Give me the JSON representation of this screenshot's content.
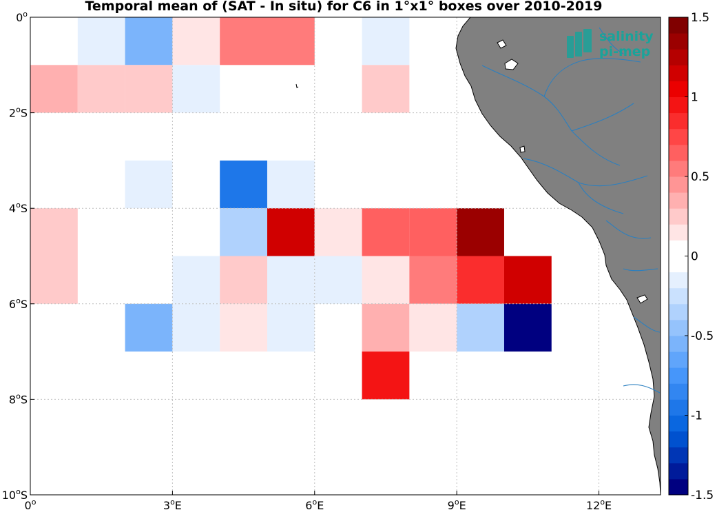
{
  "chart_data": {
    "type": "heatmap",
    "title": "Temporal mean of (SAT - In situ) for C6 in 1°x1° boxes over 2010-2019",
    "xlabel": "",
    "ylabel": "",
    "xlim": [
      0,
      13.3
    ],
    "ylim": [
      -10,
      0
    ],
    "grid": true,
    "x_ticks": [
      {
        "value": 0,
        "label": "0°"
      },
      {
        "value": 3,
        "label": "3°E"
      },
      {
        "value": 6,
        "label": "6°E"
      },
      {
        "value": 9,
        "label": "9°E"
      },
      {
        "value": 12,
        "label": "12°E"
      }
    ],
    "y_ticks": [
      {
        "value": 0,
        "label": "0°"
      },
      {
        "value": -2,
        "label": "2°S"
      },
      {
        "value": -4,
        "label": "4°S"
      },
      {
        "value": -6,
        "label": "6°S"
      },
      {
        "value": -8,
        "label": "8°S"
      },
      {
        "value": -10,
        "label": "10°S"
      }
    ],
    "colorbar": {
      "min": -1.5,
      "max": 1.5,
      "levels": 30,
      "ticks": [
        {
          "value": 1.5,
          "label": "1.5"
        },
        {
          "value": 1,
          "label": "1"
        },
        {
          "value": 0.5,
          "label": "0.5"
        },
        {
          "value": 0,
          "label": "0"
        },
        {
          "value": -0.5,
          "label": "-0.5"
        },
        {
          "value": -1,
          "label": "-1"
        },
        {
          "value": -1.5,
          "label": "-1.5"
        }
      ]
    },
    "cell_size_deg": 1,
    "cells": [
      {
        "lon": 0,
        "lat": 0,
        "value": 0.0
      },
      {
        "lon": 1,
        "lat": 0,
        "value": -0.1
      },
      {
        "lon": 2,
        "lat": 0,
        "value": -0.55
      },
      {
        "lon": 3,
        "lat": 0,
        "value": 0.15
      },
      {
        "lon": 4,
        "lat": 0,
        "value": 0.55
      },
      {
        "lon": 5,
        "lat": 0,
        "value": 0.55
      },
      {
        "lon": 7,
        "lat": 0,
        "value": -0.1
      },
      {
        "lon": 0,
        "lat": -1,
        "value": 0.35
      },
      {
        "lon": 1,
        "lat": -1,
        "value": 0.25
      },
      {
        "lon": 2,
        "lat": -1,
        "value": 0.25
      },
      {
        "lon": 3,
        "lat": -1,
        "value": -0.2
      },
      {
        "lon": 7,
        "lat": -1,
        "value": 0.25
      },
      {
        "lon": 2,
        "lat": -3,
        "value": -0.2
      },
      {
        "lon": 4,
        "lat": -3,
        "value": -0.95
      },
      {
        "lon": 5,
        "lat": -3,
        "value": -0.1
      },
      {
        "lon": 0,
        "lat": -4,
        "value": 0.25
      },
      {
        "lon": 4,
        "lat": -4,
        "value": -0.35
      },
      {
        "lon": 5,
        "lat": -4,
        "value": 1.15
      },
      {
        "lon": 6,
        "lat": -4,
        "value": 0.15
      },
      {
        "lon": 7,
        "lat": -4,
        "value": 0.65
      },
      {
        "lon": 8,
        "lat": -4,
        "value": 0.65
      },
      {
        "lon": 9,
        "lat": -4,
        "value": 1.35
      },
      {
        "lon": 0,
        "lat": -5,
        "value": 0.25
      },
      {
        "lon": 3,
        "lat": -5,
        "value": -0.2
      },
      {
        "lon": 4,
        "lat": -5,
        "value": 0.25
      },
      {
        "lon": 5,
        "lat": -5,
        "value": -0.1
      },
      {
        "lon": 6,
        "lat": -5,
        "value": -0.1
      },
      {
        "lon": 7,
        "lat": -5,
        "value": 0.15
      },
      {
        "lon": 8,
        "lat": -5,
        "value": 0.55
      },
      {
        "lon": 9,
        "lat": -5,
        "value": 0.85
      },
      {
        "lon": 10,
        "lat": -5,
        "value": 1.15
      },
      {
        "lon": 2,
        "lat": -6,
        "value": -0.55
      },
      {
        "lon": 3,
        "lat": -6,
        "value": -0.2
      },
      {
        "lon": 4,
        "lat": -6,
        "value": 0.15
      },
      {
        "lon": 5,
        "lat": -6,
        "value": -0.1
      },
      {
        "lon": 7,
        "lat": -6,
        "value": 0.35
      },
      {
        "lon": 8,
        "lat": -6,
        "value": 0.15
      },
      {
        "lon": 9,
        "lat": -6,
        "value": -0.35
      },
      {
        "lon": 10,
        "lat": -6,
        "value": -1.5
      },
      {
        "lon": 7,
        "lat": -7,
        "value": 0.95
      }
    ]
  },
  "colors": {
    "land": "#808080",
    "coastline": "#000000",
    "river": "#2a7fc0",
    "grid": "#bfbfbf",
    "logo_accent": "#1aa39a"
  },
  "logo": {
    "line1": "salinity",
    "line2": "pi-mep"
  }
}
